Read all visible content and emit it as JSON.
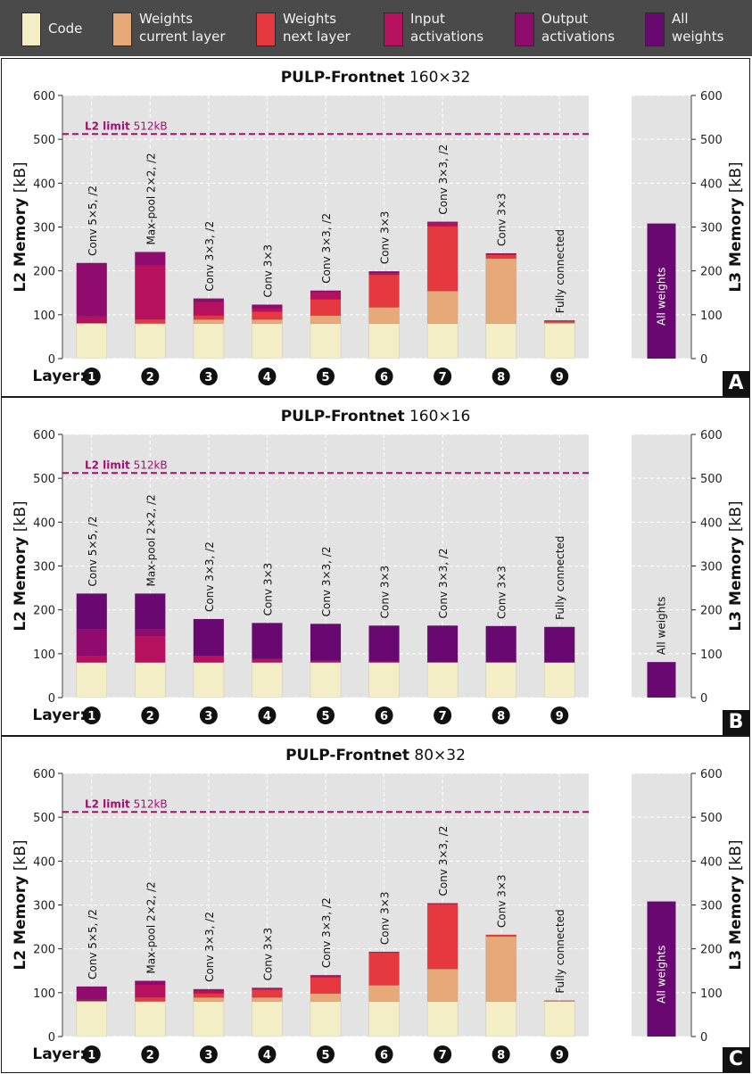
{
  "legend": {
    "items": [
      {
        "label": "Code",
        "color": "#f3eec6"
      },
      {
        "label": "Weights\ncurrent layer",
        "color": "#e8a978"
      },
      {
        "label": "Weights\nnext layer",
        "color": "#e6393f"
      },
      {
        "label": "Input\nactivations",
        "color": "#b5115e"
      },
      {
        "label": "Output\nactivations",
        "color": "#8f0c6e"
      },
      {
        "label": "All\nweights",
        "color": "#6a0872"
      }
    ]
  },
  "common": {
    "layer_label": "Layer:",
    "layer_markers": [
      "1",
      "2",
      "3",
      "4",
      "5",
      "6",
      "7",
      "8",
      "9"
    ],
    "limit_label_bold": "L2 limit",
    "limit_label_value": "512kB",
    "limit_value": 512,
    "left_axis_bold": "L2 Memory",
    "left_axis_unit": "[kB]",
    "right_axis_bold": "L3 Memory",
    "right_axis_unit": "[kB]",
    "l3_bar_label": "All weights",
    "yticks": [
      0,
      100,
      200,
      300,
      400,
      500,
      600
    ]
  },
  "chart_data": [
    {
      "type": "bar",
      "panel": "A",
      "title_bold": "PULP-Frontnet",
      "title_rest": "160×32",
      "xlabel": "Layer",
      "ylabel": "L2 Memory [kB]",
      "ylim": [
        0,
        600
      ],
      "categories": [
        "Conv 5×5, /2",
        "Max-pool 2×2, /2",
        "Conv 3×3, /2",
        "Conv 3×3",
        "Conv 3×3, /2",
        "Conv 3×3",
        "Conv 3×3, /2",
        "Conv 3×3",
        "Fully connected"
      ],
      "series": [
        {
          "name": "Code",
          "values": [
            80,
            80,
            80,
            80,
            80,
            80,
            80,
            80,
            80
          ]
        },
        {
          "name": "Weights current layer",
          "values": [
            1,
            0,
            9,
            9,
            18,
            37,
            74,
            148,
            2
          ]
        },
        {
          "name": "Weights next layer",
          "values": [
            0,
            9,
            9,
            18,
            37,
            74,
            148,
            9,
            3
          ]
        },
        {
          "name": "Input activations",
          "values": [
            15,
            123,
            31,
            8,
            16,
            4,
            8,
            2,
            2
          ]
        },
        {
          "name": "Output activations",
          "values": [
            122,
            31,
            8,
            8,
            4,
            4,
            2,
            1,
            0
          ]
        }
      ],
      "l3": {
        "ylabel": "L3 Memory [kB]",
        "ylim": [
          0,
          600
        ],
        "all_weights": 308
      }
    },
    {
      "type": "bar",
      "panel": "B",
      "title_bold": "PULP-Frontnet",
      "title_rest": "160×16",
      "xlabel": "Layer",
      "ylabel": "L2 Memory [kB]",
      "ylim": [
        0,
        600
      ],
      "categories": [
        "Conv 5×5, /2",
        "Max-pool 2×2, /2",
        "Conv 3×3, /2",
        "Conv 3×3",
        "Conv 3×3, /2",
        "Conv 3×3",
        "Conv 3×3, /2",
        "Conv 3×3",
        "Fully connected"
      ],
      "series": [
        {
          "name": "Code",
          "values": [
            80,
            80,
            80,
            80,
            80,
            80,
            80,
            80,
            80
          ]
        },
        {
          "name": "Weights current layer",
          "values": [
            0,
            0,
            0,
            0,
            0,
            0,
            0,
            0,
            0
          ]
        },
        {
          "name": "Weights next layer",
          "values": [
            0,
            0,
            0,
            0,
            0,
            0,
            0,
            0,
            0
          ]
        },
        {
          "name": "Input activations",
          "values": [
            15,
            60,
            15,
            8,
            4,
            2,
            1,
            1,
            0
          ]
        },
        {
          "name": "Output activations",
          "values": [
            60,
            15,
            0,
            0,
            0,
            0,
            0,
            0,
            0
          ]
        },
        {
          "name": "All weights",
          "values": [
            82,
            82,
            84,
            82,
            84,
            82,
            83,
            82,
            81
          ]
        }
      ],
      "l3": {
        "ylabel": "L3 Memory [kB]",
        "ylim": [
          0,
          600
        ],
        "all_weights": 81
      }
    },
    {
      "type": "bar",
      "panel": "C",
      "title_bold": "PULP-Frontnet",
      "title_rest": "80×32",
      "xlabel": "Layer",
      "ylabel": "L2 Memory [kB]",
      "ylim": [
        0,
        600
      ],
      "categories": [
        "Conv 5×5, /2",
        "Max-pool 2×2, /2",
        "Conv 3×3, /2",
        "Conv 3×3",
        "Conv 3×3, /2",
        "Conv 3×3",
        "Conv 3×3, /2",
        "Conv 3×3",
        "Fully connected"
      ],
      "series": [
        {
          "name": "Code",
          "values": [
            80,
            80,
            80,
            80,
            80,
            80,
            80,
            80,
            80
          ]
        },
        {
          "name": "Weights current layer",
          "values": [
            1,
            0,
            9,
            9,
            18,
            37,
            74,
            148,
            1
          ]
        },
        {
          "name": "Weights next layer",
          "values": [
            0,
            9,
            9,
            18,
            37,
            74,
            148,
            4,
            1
          ]
        },
        {
          "name": "Input activations",
          "values": [
            3,
            30,
            8,
            2,
            4,
            1,
            2,
            0,
            0
          ]
        },
        {
          "name": "Output activations",
          "values": [
            30,
            8,
            2,
            2,
            1,
            1,
            0,
            0,
            0
          ]
        }
      ],
      "l3": {
        "ylabel": "L3 Memory [kB]",
        "ylim": [
          0,
          600
        ],
        "all_weights": 308
      }
    }
  ]
}
